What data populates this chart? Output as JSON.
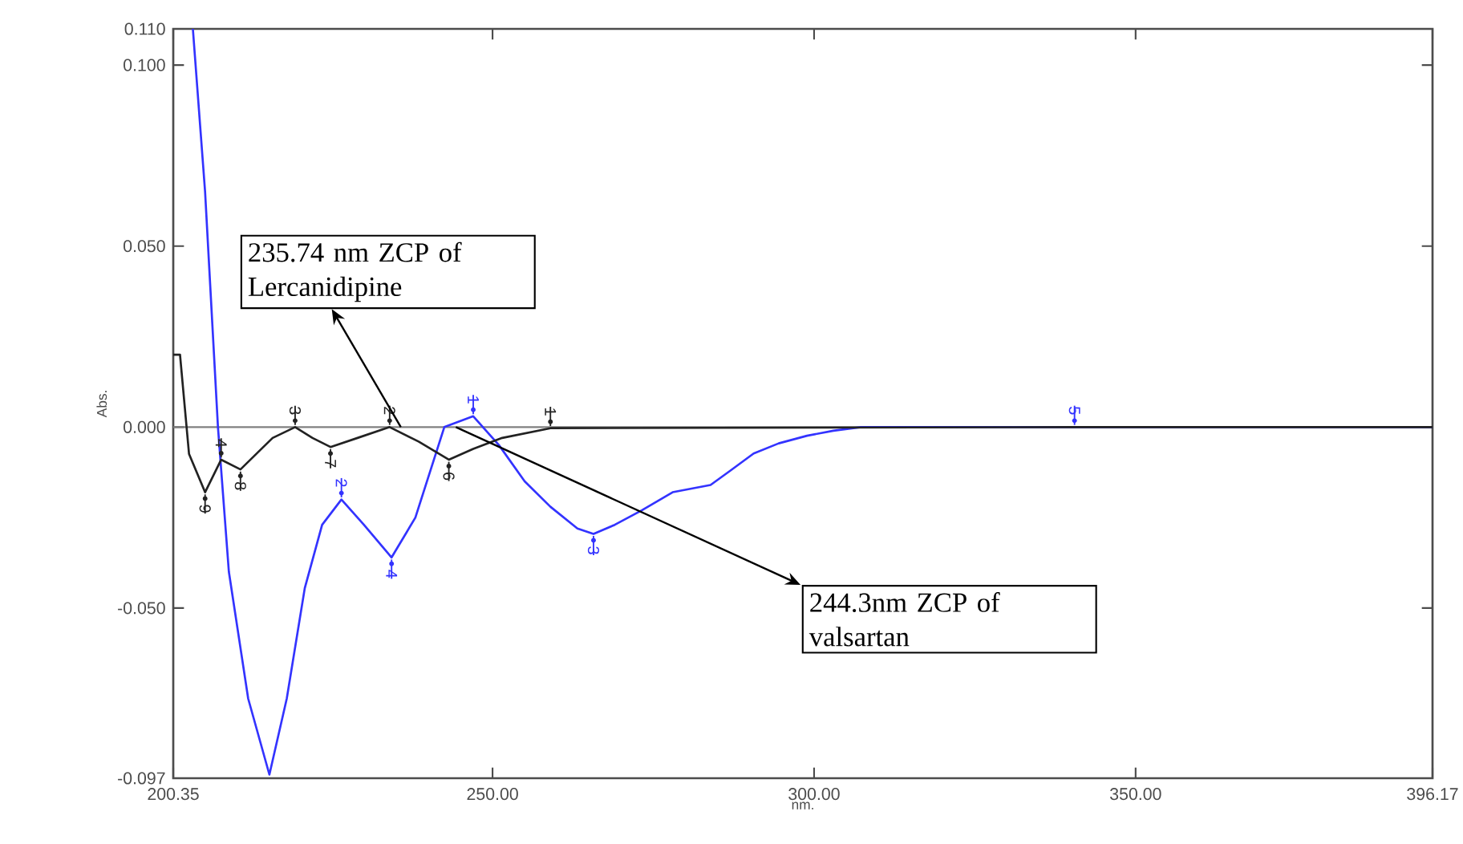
{
  "chart_data": {
    "type": "line",
    "xlabel": "nm.",
    "ylabel": "Abs.",
    "xlim": [
      200.35,
      396.17
    ],
    "ylim": [
      -0.097,
      0.11
    ],
    "xticks": [
      {
        "value": 200.35,
        "label": "200.35"
      },
      {
        "value": 250,
        "label": "250.00"
      },
      {
        "value": 300,
        "label": "300.00"
      },
      {
        "value": 350,
        "label": "350.00"
      },
      {
        "value": 396.17,
        "label": "396.17"
      }
    ],
    "yticks": [
      {
        "value": -0.097,
        "label": "-0.097"
      },
      {
        "value": -0.05,
        "label": "-0.050"
      },
      {
        "value": 0,
        "label": "0.000"
      },
      {
        "value": 0.05,
        "label": "0.050"
      },
      {
        "value": 0.1,
        "label": "0.100"
      },
      {
        "value": 0.11,
        "label": "0.110"
      }
    ],
    "marker": "none",
    "line_style": "solid",
    "ref_lines": [
      {
        "axis": "y",
        "value": 0,
        "color": "#808080"
      }
    ],
    "series": [
      {
        "color": "#3333ff",
        "x": [
          203.4,
          205.3,
          207.3,
          209.0,
          212.0,
          215.3,
          218.0,
          220.8,
          223.5,
          226.5,
          230.0,
          234.3,
          238.0,
          242.5,
          247.0,
          251.0,
          255.0,
          259.0,
          263.2,
          265.7,
          269.0,
          273.2,
          278.0,
          283.9,
          287.0,
          290.6,
          294.5,
          298.9,
          303.0,
          307.3,
          396.17
        ],
        "values": [
          0.11,
          0.065,
          0.0,
          -0.04,
          -0.075,
          -0.096,
          -0.075,
          -0.0445,
          -0.027,
          -0.02,
          -0.027,
          -0.036,
          -0.025,
          0.0,
          0.003,
          -0.005,
          -0.015,
          -0.022,
          -0.028,
          -0.0295,
          -0.027,
          -0.023,
          -0.018,
          -0.016,
          -0.012,
          -0.0073,
          -0.0045,
          -0.0024,
          -0.001,
          0.0,
          0.0
        ]
      },
      {
        "color": "#222222",
        "x": [
          200.35,
          201.4,
          202.8,
          205.3,
          207.8,
          210.8,
          213.5,
          215.8,
          219.3,
          222.0,
          224.8,
          229.0,
          234.0,
          238.5,
          243.2,
          247.0,
          251.5,
          259.0,
          340.5,
          396.17
        ],
        "values": [
          0.02,
          0.02,
          -0.0074,
          -0.018,
          -0.009,
          -0.0117,
          -0.007,
          -0.003,
          0.0,
          -0.003,
          -0.0055,
          -0.003,
          0.0,
          -0.004,
          -0.009,
          -0.006,
          -0.003,
          -0.0003,
          0.0,
          0.0
        ]
      }
    ],
    "annotations": [
      {
        "text": "235.74 nm ZCP of Lercanidipine",
        "x": 235.74,
        "y": 0
      },
      {
        "text": "244.3nm ZCP of valsartan",
        "x": 244.3,
        "y": 0
      },
      {
        "text": "1",
        "x": 247.0,
        "y": 0.003
      },
      {
        "text": "2",
        "x": 226.5,
        "y": -0.02
      },
      {
        "text": "3",
        "x": 265.7,
        "y": -0.0295
      },
      {
        "text": "4",
        "x": 234.3,
        "y": -0.036
      },
      {
        "text": "1",
        "x": 259.0,
        "y": -0.0003
      },
      {
        "text": "2",
        "x": 234.0,
        "y": 0.0
      },
      {
        "text": "3",
        "x": 219.3,
        "y": 0.0
      },
      {
        "text": "4",
        "x": 207.8,
        "y": -0.009
      },
      {
        "text": "5",
        "x": 340.5,
        "y": 0.0
      },
      {
        "text": "6",
        "x": 243.2,
        "y": -0.009
      },
      {
        "text": "7",
        "x": 224.8,
        "y": -0.0055
      },
      {
        "text": "8",
        "x": 210.8,
        "y": -0.0117
      },
      {
        "text": "9",
        "x": 205.3,
        "y": -0.018
      }
    ]
  }
}
